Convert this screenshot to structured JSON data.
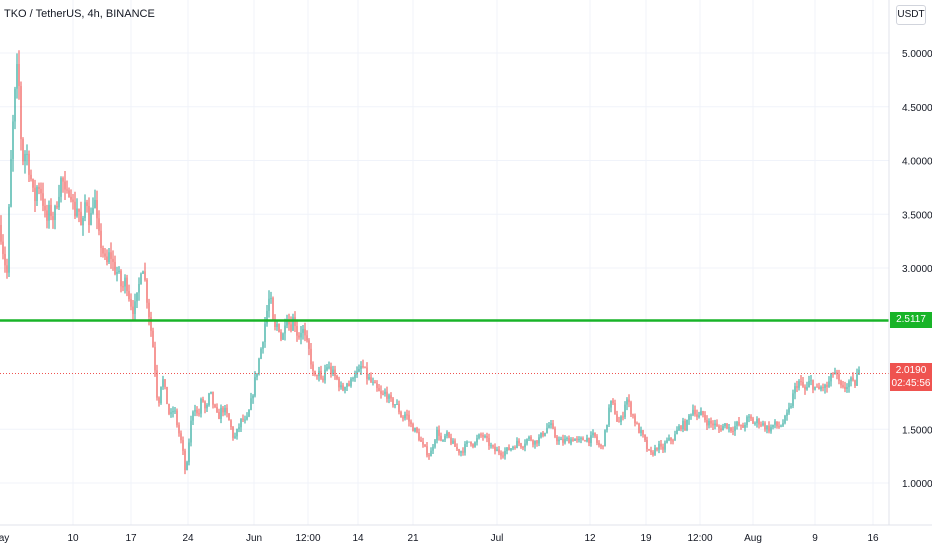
{
  "chart_title": "TKO / TetherUS, 4h, BINANCE",
  "currency_button": "USDT",
  "colors": {
    "up": "#26a69a",
    "down": "#ef5350",
    "level_line": "#18b428",
    "grid": "#f0f3fa"
  },
  "chart_data": {
    "type": "candlestick",
    "y_ticks": [
      "5.0000",
      "4.5000",
      "4.0000",
      "3.5000",
      "3.0000",
      "1.5000",
      "1.0000"
    ],
    "ylim": [
      0.6,
      5.2
    ],
    "x_ticks": [
      "ay",
      "10",
      "17",
      "24",
      "Jun",
      "12:00",
      "14",
      "21",
      "Jul",
      "12",
      "19",
      "12:00",
      "Aug",
      "9",
      "16"
    ],
    "horizontal_level": {
      "value": 2.5117,
      "label": "2.5117"
    },
    "last_price": {
      "value": 2.019,
      "label": "2.0190",
      "countdown": "02:45:56"
    },
    "price_path": [
      [
        0,
        3.4
      ],
      [
        4,
        3.1
      ],
      [
        7,
        2.95
      ],
      [
        10,
        3.8
      ],
      [
        14,
        4.5
      ],
      [
        18,
        4.9
      ],
      [
        22,
        4.0
      ],
      [
        26,
        4.1
      ],
      [
        30,
        3.9
      ],
      [
        34,
        3.6
      ],
      [
        38,
        3.8
      ],
      [
        42,
        3.7
      ],
      [
        46,
        3.4
      ],
      [
        50,
        3.55
      ],
      [
        54,
        3.45
      ],
      [
        58,
        3.7
      ],
      [
        62,
        3.85
      ],
      [
        66,
        3.6
      ],
      [
        70,
        3.8
      ],
      [
        74,
        3.5
      ],
      [
        78,
        3.6
      ],
      [
        82,
        3.3
      ],
      [
        86,
        3.7
      ],
      [
        90,
        3.4
      ],
      [
        94,
        3.7
      ],
      [
        98,
        3.3
      ],
      [
        102,
        3.2
      ],
      [
        106,
        3.0
      ],
      [
        110,
        3.15
      ],
      [
        114,
        3.0
      ],
      [
        118,
        2.95
      ],
      [
        122,
        2.8
      ],
      [
        126,
        2.9
      ],
      [
        130,
        2.7
      ],
      [
        134,
        2.6
      ],
      [
        138,
        2.75
      ],
      [
        142,
        3.1
      ],
      [
        146,
        2.8
      ],
      [
        150,
        2.5
      ],
      [
        154,
        2.2
      ],
      [
        158,
        1.7
      ],
      [
        162,
        2.0
      ],
      [
        166,
        1.8
      ],
      [
        170,
        1.6
      ],
      [
        174,
        1.7
      ],
      [
        178,
        1.5
      ],
      [
        182,
        1.35
      ],
      [
        186,
        1.05
      ],
      [
        190,
        1.5
      ],
      [
        194,
        1.75
      ],
      [
        198,
        1.6
      ],
      [
        202,
        1.8
      ],
      [
        206,
        1.65
      ],
      [
        210,
        1.85
      ],
      [
        214,
        1.7
      ],
      [
        218,
        1.6
      ],
      [
        222,
        1.7
      ],
      [
        226,
        1.65
      ],
      [
        230,
        1.55
      ],
      [
        234,
        1.4
      ],
      [
        238,
        1.5
      ],
      [
        242,
        1.6
      ],
      [
        246,
        1.55
      ],
      [
        250,
        1.7
      ],
      [
        254,
        1.9
      ],
      [
        258,
        2.1
      ],
      [
        262,
        2.3
      ],
      [
        266,
        2.55
      ],
      [
        270,
        2.75
      ],
      [
        274,
        2.4
      ],
      [
        278,
        2.5
      ],
      [
        282,
        2.3
      ],
      [
        286,
        2.6
      ],
      [
        290,
        2.45
      ],
      [
        294,
        2.55
      ],
      [
        298,
        2.35
      ],
      [
        302,
        2.45
      ],
      [
        306,
        2.3
      ],
      [
        310,
        2.2
      ],
      [
        314,
        1.95
      ],
      [
        318,
        2.05
      ],
      [
        322,
        1.9
      ],
      [
        326,
        2.1
      ],
      [
        330,
        2.05
      ],
      [
        334,
        2.0
      ],
      [
        338,
        1.95
      ],
      [
        342,
        1.85
      ],
      [
        346,
        1.95
      ],
      [
        350,
        1.9
      ],
      [
        354,
        2.05
      ],
      [
        358,
        2.0
      ],
      [
        362,
        2.1
      ],
      [
        366,
        2.0
      ],
      [
        370,
        1.95
      ],
      [
        374,
        1.9
      ],
      [
        378,
        1.85
      ],
      [
        382,
        1.8
      ],
      [
        386,
        1.85
      ],
      [
        390,
        1.75
      ],
      [
        394,
        1.75
      ],
      [
        398,
        1.7
      ],
      [
        402,
        1.6
      ],
      [
        406,
        1.65
      ],
      [
        410,
        1.55
      ],
      [
        414,
        1.5
      ],
      [
        418,
        1.45
      ],
      [
        422,
        1.35
      ],
      [
        426,
        1.3
      ],
      [
        430,
        1.25
      ],
      [
        434,
        1.4
      ],
      [
        438,
        1.5
      ],
      [
        442,
        1.35
      ],
      [
        446,
        1.45
      ],
      [
        450,
        1.4
      ],
      [
        454,
        1.35
      ],
      [
        458,
        1.3
      ],
      [
        462,
        1.3
      ],
      [
        466,
        1.35
      ],
      [
        470,
        1.4
      ],
      [
        474,
        1.35
      ],
      [
        478,
        1.42
      ],
      [
        482,
        1.45
      ],
      [
        486,
        1.4
      ],
      [
        490,
        1.35
      ],
      [
        494,
        1.3
      ],
      [
        498,
        1.3
      ],
      [
        502,
        1.28
      ],
      [
        506,
        1.3
      ],
      [
        510,
        1.32
      ],
      [
        514,
        1.35
      ],
      [
        518,
        1.38
      ],
      [
        522,
        1.35
      ],
      [
        526,
        1.4
      ],
      [
        530,
        1.42
      ],
      [
        534,
        1.38
      ],
      [
        538,
        1.4
      ],
      [
        542,
        1.45
      ],
      [
        546,
        1.5
      ],
      [
        550,
        1.55
      ],
      [
        554,
        1.45
      ],
      [
        558,
        1.4
      ],
      [
        562,
        1.38
      ],
      [
        566,
        1.4
      ],
      [
        570,
        1.4
      ],
      [
        574,
        1.42
      ],
      [
        578,
        1.38
      ],
      [
        582,
        1.4
      ],
      [
        586,
        1.42
      ],
      [
        590,
        1.4
      ],
      [
        594,
        1.45
      ],
      [
        598,
        1.35
      ],
      [
        602,
        1.33
      ],
      [
        606,
        1.5
      ],
      [
        610,
        1.75
      ],
      [
        614,
        1.7
      ],
      [
        618,
        1.55
      ],
      [
        622,
        1.6
      ],
      [
        626,
        1.8
      ],
      [
        630,
        1.7
      ],
      [
        634,
        1.6
      ],
      [
        638,
        1.5
      ],
      [
        642,
        1.45
      ],
      [
        646,
        1.35
      ],
      [
        650,
        1.25
      ],
      [
        654,
        1.3
      ],
      [
        658,
        1.35
      ],
      [
        662,
        1.3
      ],
      [
        666,
        1.38
      ],
      [
        670,
        1.4
      ],
      [
        674,
        1.42
      ],
      [
        678,
        1.5
      ],
      [
        682,
        1.55
      ],
      [
        686,
        1.52
      ],
      [
        690,
        1.65
      ],
      [
        694,
        1.7
      ],
      [
        698,
        1.6
      ],
      [
        702,
        1.65
      ],
      [
        706,
        1.58
      ],
      [
        710,
        1.55
      ],
      [
        714,
        1.55
      ],
      [
        718,
        1.5
      ],
      [
        722,
        1.52
      ],
      [
        726,
        1.55
      ],
      [
        730,
        1.5
      ],
      [
        734,
        1.52
      ],
      [
        738,
        1.55
      ],
      [
        742,
        1.5
      ],
      [
        746,
        1.58
      ],
      [
        750,
        1.6
      ],
      [
        754,
        1.55
      ],
      [
        758,
        1.58
      ],
      [
        762,
        1.55
      ],
      [
        766,
        1.52
      ],
      [
        770,
        1.5
      ],
      [
        774,
        1.55
      ],
      [
        778,
        1.52
      ],
      [
        782,
        1.55
      ],
      [
        786,
        1.6
      ],
      [
        790,
        1.7
      ],
      [
        794,
        1.85
      ],
      [
        798,
        1.95
      ],
      [
        802,
        1.9
      ],
      [
        806,
        1.85
      ],
      [
        810,
        1.95
      ],
      [
        814,
        1.9
      ],
      [
        818,
        1.85
      ],
      [
        822,
        1.9
      ],
      [
        826,
        1.88
      ],
      [
        830,
        1.95
      ],
      [
        834,
        2.05
      ],
      [
        838,
        1.95
      ],
      [
        842,
        1.85
      ],
      [
        846,
        1.9
      ],
      [
        850,
        1.95
      ],
      [
        854,
        1.9
      ],
      [
        858,
        2.02
      ],
      [
        860,
        2.019
      ]
    ]
  }
}
